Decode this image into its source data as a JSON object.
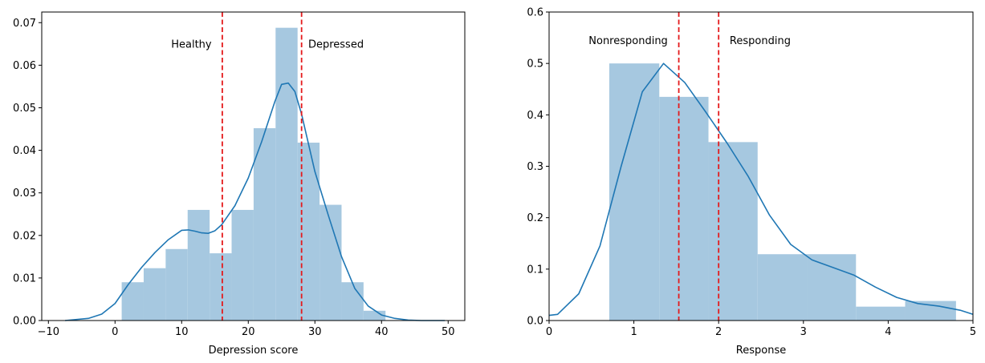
{
  "chart_data": [
    {
      "type": "bar",
      "subtype": "histogram-with-kde",
      "xlabel": "Depression score",
      "ylabel": "",
      "xlim": [
        -11,
        52.5
      ],
      "ylim": [
        0,
        0.0725
      ],
      "xticks": [
        -10,
        0,
        10,
        20,
        30,
        40,
        50
      ],
      "xtick_labels": [
        "−10",
        "0",
        "10",
        "20",
        "30",
        "40",
        "50"
      ],
      "yticks": [
        0,
        0.01,
        0.02,
        0.03,
        0.04,
        0.05,
        0.06,
        0.07
      ],
      "ytick_labels": [
        "0.00",
        "0.01",
        "0.02",
        "0.03",
        "0.04",
        "0.05",
        "0.06",
        "0.07"
      ],
      "bar_color": "#a6c8e0",
      "line_color": "#1f77b4",
      "bins": [
        {
          "x0": 1,
          "x1": 4.3,
          "value": 0.009
        },
        {
          "x0": 4.3,
          "x1": 7.6,
          "value": 0.0123
        },
        {
          "x0": 7.6,
          "x1": 10.9,
          "value": 0.0168
        },
        {
          "x0": 10.9,
          "x1": 14.2,
          "value": 0.026
        },
        {
          "x0": 14.2,
          "x1": 17.5,
          "value": 0.0158
        },
        {
          "x0": 17.5,
          "x1": 20.8,
          "value": 0.026
        },
        {
          "x0": 20.8,
          "x1": 24.1,
          "value": 0.0452
        },
        {
          "x0": 24.1,
          "x1": 27.4,
          "value": 0.0688
        },
        {
          "x0": 27.4,
          "x1": 30.7,
          "value": 0.0418
        },
        {
          "x0": 30.7,
          "x1": 34.0,
          "value": 0.0272
        },
        {
          "x0": 34.0,
          "x1": 37.3,
          "value": 0.009
        },
        {
          "x0": 37.3,
          "x1": 40.6,
          "value": 0.0023
        }
      ],
      "kde": {
        "x": [
          -7.5,
          -4,
          -2,
          0,
          2,
          4,
          6,
          8,
          10,
          11,
          12,
          13,
          14,
          15,
          16,
          18,
          20,
          22,
          24,
          25,
          26,
          27,
          28,
          30,
          32,
          34,
          36,
          38,
          40,
          42,
          44,
          46,
          49.5
        ],
        "y": [
          0.0,
          0.0005,
          0.0015,
          0.004,
          0.0085,
          0.0125,
          0.016,
          0.019,
          0.0212,
          0.0213,
          0.021,
          0.0206,
          0.0205,
          0.0211,
          0.0225,
          0.027,
          0.0335,
          0.042,
          0.0515,
          0.0555,
          0.0558,
          0.0538,
          0.0485,
          0.035,
          0.0248,
          0.015,
          0.0075,
          0.0034,
          0.0013,
          0.0005,
          0.0001,
          0.0,
          0.0
        ]
      },
      "vlines": [
        {
          "x": 16.1,
          "color": "#e41a1c",
          "style": "dashed"
        },
        {
          "x": 28.0,
          "color": "#e41a1c",
          "style": "dashed"
        }
      ],
      "annotations": [
        {
          "text": "Healthy",
          "x": 14.5,
          "y": 0.065,
          "anchor": "end"
        },
        {
          "text": "Depressed",
          "x": 29.0,
          "y": 0.065,
          "anchor": "start"
        }
      ]
    },
    {
      "type": "bar",
      "subtype": "histogram-with-kde",
      "xlabel": "Response",
      "ylabel": "",
      "xlim": [
        0,
        5
      ],
      "ylim": [
        0,
        0.6
      ],
      "xticks": [
        0,
        1,
        2,
        3,
        4,
        5
      ],
      "xtick_labels": [
        "0",
        "1",
        "2",
        "3",
        "4",
        "5"
      ],
      "yticks": [
        0,
        0.1,
        0.2,
        0.3,
        0.4,
        0.5,
        0.6
      ],
      "ytick_labels": [
        "0.0",
        "0.1",
        "0.2",
        "0.3",
        "0.4",
        "0.5",
        "0.6"
      ],
      "bar_color": "#a6c8e0",
      "line_color": "#1f77b4",
      "bins": [
        {
          "x0": 0.71,
          "x1": 1.3,
          "value": 0.5
        },
        {
          "x0": 1.3,
          "x1": 1.88,
          "value": 0.435
        },
        {
          "x0": 1.88,
          "x1": 2.46,
          "value": 0.347
        },
        {
          "x0": 2.46,
          "x1": 3.04,
          "value": 0.129
        },
        {
          "x0": 3.04,
          "x1": 3.62,
          "value": 0.129
        },
        {
          "x0": 3.62,
          "x1": 4.2,
          "value": 0.027
        },
        {
          "x0": 4.2,
          "x1": 4.8,
          "value": 0.038
        }
      ],
      "kde": {
        "x": [
          0.0,
          0.1,
          0.35,
          0.6,
          0.85,
          1.1,
          1.35,
          1.6,
          1.85,
          2.1,
          2.35,
          2.6,
          2.85,
          3.1,
          3.35,
          3.6,
          3.85,
          4.1,
          4.35,
          4.6,
          4.85,
          5.0
        ],
        "y": [
          0.01,
          0.012,
          0.052,
          0.145,
          0.3,
          0.445,
          0.5,
          0.463,
          0.405,
          0.345,
          0.28,
          0.205,
          0.148,
          0.118,
          0.103,
          0.088,
          0.065,
          0.045,
          0.033,
          0.028,
          0.02,
          0.012
        ]
      },
      "vlines": [
        {
          "x": 1.53,
          "color": "#e41a1c",
          "style": "dashed"
        },
        {
          "x": 2.0,
          "color": "#e41a1c",
          "style": "dashed"
        }
      ],
      "annotations": [
        {
          "text": "Nonresponding",
          "x": 1.4,
          "y": 0.545,
          "anchor": "end"
        },
        {
          "text": "Responding",
          "x": 2.13,
          "y": 0.545,
          "anchor": "start"
        }
      ]
    }
  ]
}
